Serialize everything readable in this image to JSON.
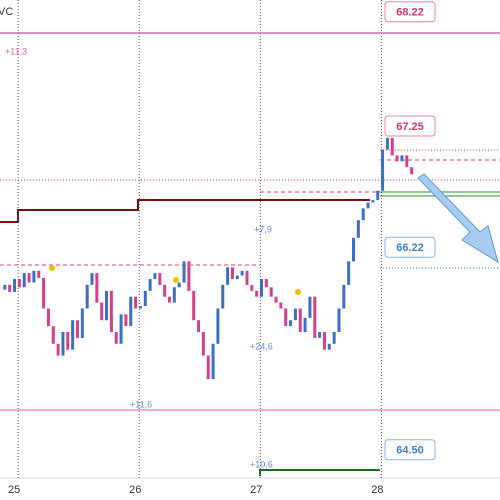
{
  "chart_data": {
    "type": "candlestick",
    "title": "VC",
    "x": [
      24.85,
      24.89,
      24.93,
      24.97,
      25.01,
      25.05,
      25.09,
      25.13,
      25.17,
      25.21,
      25.25,
      25.29,
      25.33,
      25.37,
      25.41,
      25.45,
      25.49,
      25.53,
      25.57,
      25.61,
      25.65,
      25.69,
      25.73,
      25.77,
      25.81,
      25.85,
      25.89,
      25.93,
      25.97,
      26.01,
      26.05,
      26.09,
      26.13,
      26.17,
      26.21,
      26.25,
      26.29,
      26.33,
      26.37,
      26.41,
      26.45,
      26.49,
      26.53,
      26.57,
      26.61,
      26.65,
      26.69,
      26.73,
      26.77,
      26.81,
      26.85,
      26.89,
      26.93,
      26.97,
      27.01,
      27.05,
      27.09,
      27.13,
      27.17,
      27.21,
      27.25,
      27.29,
      27.33,
      27.37,
      27.41,
      27.45,
      27.49,
      27.53,
      27.57,
      27.61,
      27.65,
      27.69,
      27.73,
      27.77,
      27.81,
      27.85,
      27.89,
      27.93,
      27.97,
      28.01,
      28.05,
      28.09,
      28.13,
      28.17,
      28.21,
      28.25
    ],
    "series": [
      {
        "name": "close",
        "up_color": "#3b6fc4",
        "down_color": "#d6408a",
        "values": [
          65.86,
          65.9,
          65.84,
          65.95,
          65.88,
          66.0,
          65.92,
          66.02,
          65.96,
          65.7,
          65.55,
          65.4,
          65.3,
          65.5,
          65.35,
          65.6,
          65.45,
          65.7,
          65.9,
          66.0,
          65.75,
          65.6,
          65.85,
          65.5,
          65.4,
          65.65,
          65.55,
          65.8,
          65.7,
          65.72,
          65.85,
          65.95,
          66.0,
          65.9,
          65.8,
          65.75,
          65.88,
          65.92,
          66.1,
          65.85,
          65.6,
          65.5,
          65.3,
          65.1,
          65.4,
          65.7,
          65.9,
          66.05,
          65.95,
          65.98,
          66.02,
          65.9,
          65.85,
          65.8,
          65.95,
          65.88,
          65.8,
          65.75,
          65.7,
          65.55,
          65.6,
          65.7,
          65.5,
          65.62,
          65.8,
          65.45,
          65.5,
          65.35,
          65.4,
          65.5,
          65.7,
          65.9,
          66.1,
          66.3,
          66.45,
          66.55,
          66.6,
          66.62,
          66.7,
          67.05,
          67.15,
          67.0,
          66.95,
          67.0,
          66.9,
          66.84
        ]
      }
    ],
    "xlim": [
      24.85,
      28.98
    ],
    "xticks": [
      25,
      26,
      27,
      28
    ],
    "ylim": [
      64.26,
      68.32
    ],
    "price_labels": [
      68.22,
      67.25,
      66.22,
      {
        "value": 64.5,
        "label": "64.50"
      }
    ],
    "price_label_colors": [
      "#d6336c",
      "#d6336c",
      "#3d7fd1",
      "#3d7fd1"
    ],
    "annotations": [
      "+11,3",
      "+7,9",
      "+24,6",
      "+11,6",
      "+10,6"
    ]
  }
}
